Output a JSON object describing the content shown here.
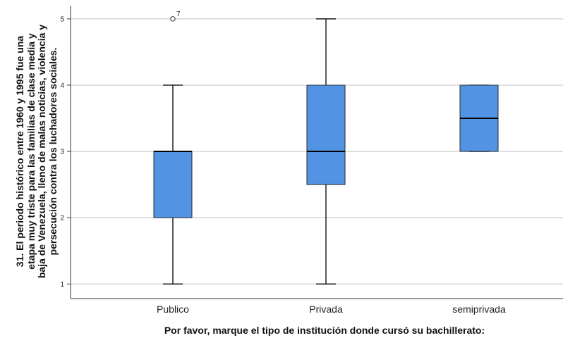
{
  "chart_data": {
    "type": "boxplot",
    "categories": [
      "Publico",
      "Privada",
      "semiprivada"
    ],
    "boxes": [
      {
        "category": "Publico",
        "min": 1,
        "q1": 2,
        "median": 3,
        "q3": 3,
        "max": 4,
        "outliers": [
          {
            "value": 5,
            "label": "7"
          }
        ]
      },
      {
        "category": "Privada",
        "min": 1,
        "q1": 2.5,
        "median": 3,
        "q3": 4,
        "max": 5,
        "outliers": []
      },
      {
        "category": "semiprivada",
        "min": 3,
        "q1": 3,
        "median": 3.5,
        "q3": 4,
        "max": 4,
        "outliers": []
      }
    ],
    "xlabel": "Por favor, marque el tipo de institución donde cursó su bachillerato:",
    "ylabel_lines": [
      "31. El periodo histórico entre 1960 y 1995 fue una",
      "etapa muy triste para las familias de clase media y",
      "baja de Venezuela, lleno de malas noticias, violencia y",
      "persecución contra los luchadores sociales."
    ],
    "yticks": [
      1,
      2,
      3,
      4,
      5
    ],
    "ylim": [
      0.78,
      5.2
    ],
    "grid": true,
    "colors": {
      "box": "#5293e4",
      "line": "#000000",
      "grid": "#c0c0c0",
      "axis": "#333333"
    }
  }
}
